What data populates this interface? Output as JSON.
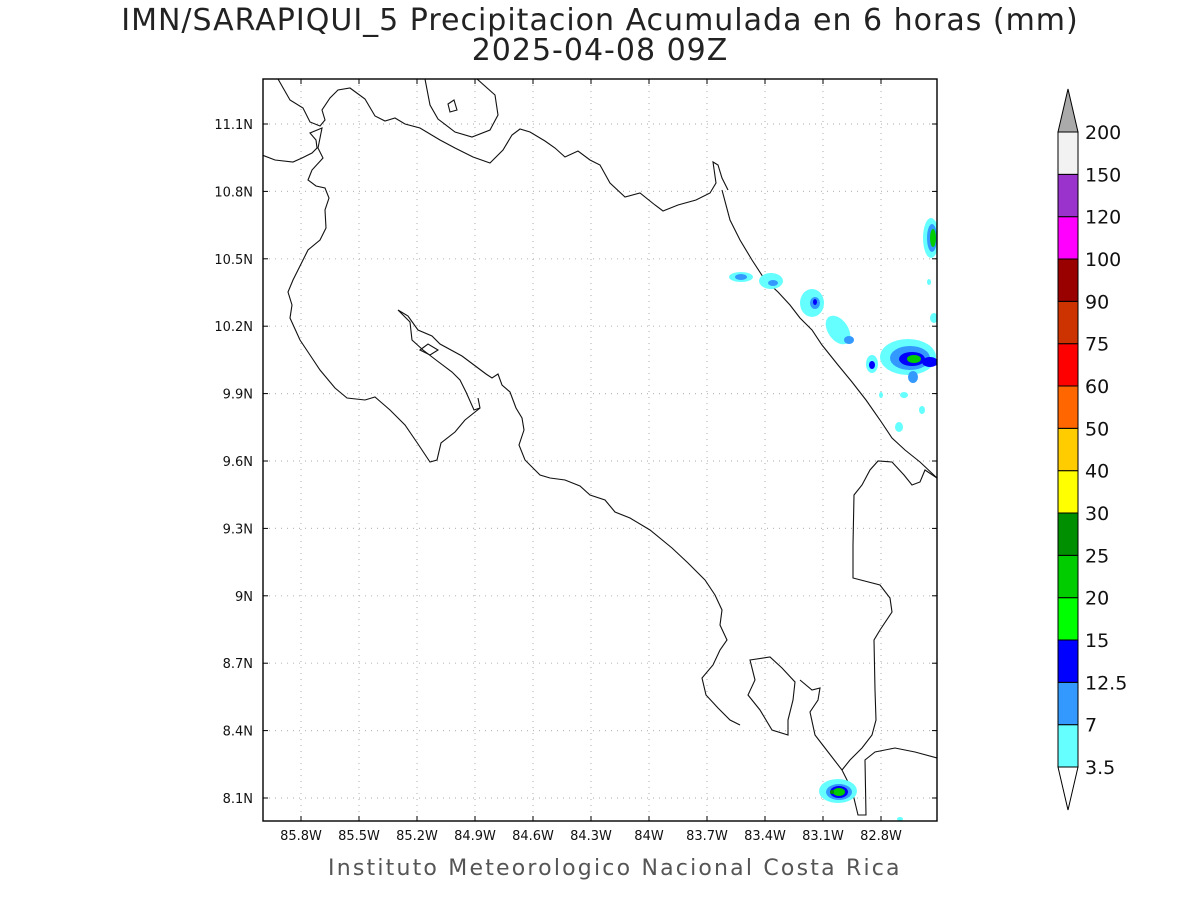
{
  "title": "IMN/SARAPIQUI_5 Precipitacion Acumulada en 6 horas (mm)",
  "subtitle": "2025-04-08 09Z",
  "footer": "Instituto Meteorologico Nacional Costa Rica",
  "map": {
    "lon_range": [
      -86.0,
      -83.0
    ],
    "lat_range": [
      8.0,
      11.3
    ],
    "lon_ticks": [
      "85.8W",
      "85.5W",
      "85.2W",
      "84.9W",
      "84.6W",
      "84.3W",
      "84W",
      "83.7W",
      "83.4W",
      "83.1W",
      "82.8W"
    ],
    "lat_ticks": [
      "11.1N",
      "10.8N",
      "10.5N",
      "10.2N",
      "9.9N",
      "9.6N",
      "9.3N",
      "9N",
      "8.7N",
      "8.4N",
      "8.1N"
    ],
    "grid": true,
    "grid_style": "dotted"
  },
  "colorbar": {
    "levels": [
      "3.5",
      "7",
      "12.5",
      "15",
      "20",
      "25",
      "30",
      "40",
      "50",
      "60",
      "75",
      "90",
      "100",
      "120",
      "150",
      "200"
    ],
    "colors": [
      "#66ffff",
      "#3399ff",
      "#0000ff",
      "#00ff00",
      "#00cc00",
      "#008f00",
      "#ffff00",
      "#ffcc00",
      "#ff6600",
      "#ff0000",
      "#cc3300",
      "#990000",
      "#ff00ff",
      "#9933cc",
      "#f2f2f2",
      "#aaaaaa"
    ]
  }
}
